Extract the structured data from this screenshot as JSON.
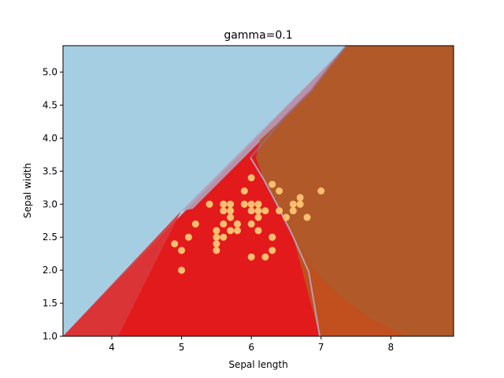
{
  "chart_data": {
    "type": "scatter",
    "title": "gamma=0.1",
    "xlabel": "Sepal length",
    "ylabel": "Sepal width",
    "xlim": [
      3.3,
      8.9
    ],
    "ylim": [
      1.0,
      5.4
    ],
    "xticks": [
      4,
      5,
      6,
      7,
      8
    ],
    "yticks": [
      1.0,
      1.5,
      2.0,
      2.5,
      3.0,
      3.5,
      4.0,
      4.5,
      5.0
    ],
    "xtick_labels": [
      "4",
      "5",
      "6",
      "7",
      "8"
    ],
    "ytick_labels": [
      "1.0",
      "1.5",
      "2.0",
      "2.5",
      "3.0",
      "3.5",
      "4.0",
      "4.5",
      "5.0"
    ],
    "grid": false,
    "background_regions": {
      "class_0_color": "#a6cee3",
      "class_1_color": "#e31a1c",
      "class_2_color": "#b15928",
      "boundary_color": "#b2a0b8"
    },
    "series": [
      {
        "color": "#fdbf6f",
        "x": [
          4.9,
          5.0,
          5.0,
          5.1,
          5.2,
          5.4,
          5.5,
          5.5,
          5.5,
          5.5,
          5.6,
          5.6,
          5.6,
          5.6,
          5.6,
          5.7,
          5.7,
          5.7,
          5.7,
          5.7,
          5.8,
          5.8,
          5.8,
          5.9,
          5.9,
          6.0,
          6.0,
          6.0,
          6.0,
          6.0,
          6.1,
          6.1,
          6.1,
          6.1,
          6.2,
          6.2,
          6.3,
          6.3,
          6.3,
          6.3,
          6.4,
          6.4,
          6.5,
          6.6,
          6.6,
          6.7,
          6.7,
          6.8,
          7.0
        ],
        "y": [
          2.4,
          2.0,
          2.3,
          2.5,
          2.7,
          3.0,
          2.3,
          2.4,
          2.5,
          2.6,
          2.5,
          2.7,
          2.9,
          3.0,
          3.0,
          2.6,
          2.8,
          2.9,
          3.0,
          2.8,
          2.6,
          2.7,
          2.7,
          3.0,
          3.2,
          2.2,
          2.7,
          2.9,
          3.0,
          3.4,
          2.6,
          2.8,
          2.9,
          3.0,
          2.2,
          2.9,
          2.3,
          2.5,
          2.5,
          3.3,
          2.9,
          3.2,
          2.8,
          2.9,
          3.0,
          3.0,
          3.1,
          2.8,
          3.2
        ]
      }
    ]
  }
}
